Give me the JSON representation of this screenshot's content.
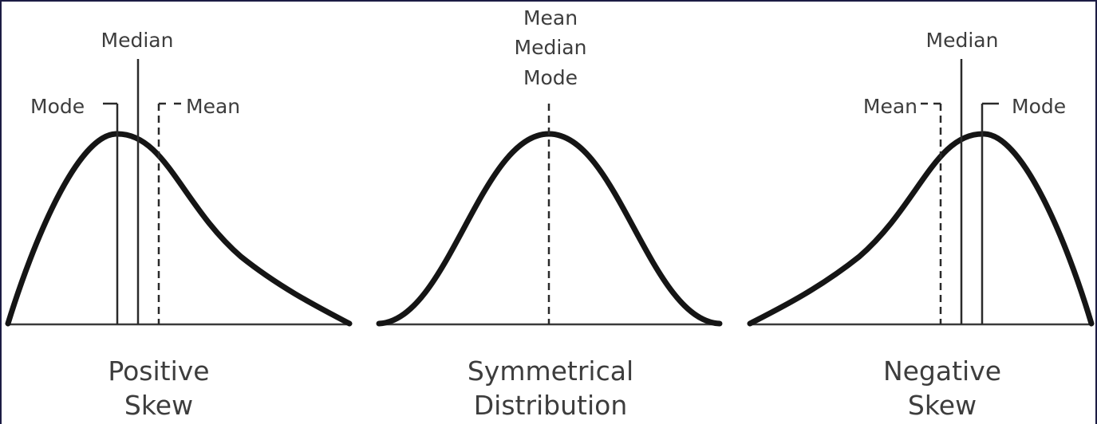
{
  "panels": [
    {
      "caption": [
        "Positive",
        "Skew"
      ],
      "labels": {
        "mode": "Mode",
        "median": "Median",
        "mean": "Mean"
      }
    },
    {
      "caption": [
        "Symmetrical",
        "Distribution"
      ],
      "labels": {
        "mean": "Mean",
        "median": "Median",
        "mode": "Mode"
      }
    },
    {
      "caption": [
        "Negative",
        "Skew"
      ],
      "labels": {
        "median": "Median",
        "mean": "Mean",
        "mode": "Mode"
      }
    }
  ],
  "colors": {
    "line": "#151515",
    "text": "#3d3d3d",
    "frame": "#1c1c44"
  }
}
